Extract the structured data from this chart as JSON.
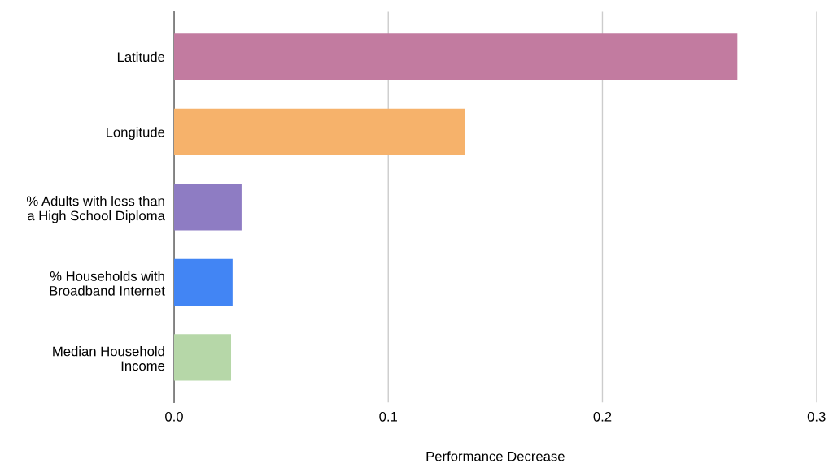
{
  "chart_data": {
    "type": "bar",
    "orientation": "horizontal",
    "xlabel": "Performance Decrease",
    "categories": [
      "Latitude",
      "Longitude",
      "% Adults with less than\na High School Diploma",
      "% Households with\nBroadband Internet",
      "Median Household\nIncome"
    ],
    "values": [
      0.263,
      0.136,
      0.0315,
      0.0273,
      0.0266
    ],
    "colors": [
      "#c27ba0",
      "#f6b26b",
      "#8e7cc3",
      "#4285f4",
      "#b6d7a8"
    ],
    "xlim": [
      0,
      0.3
    ],
    "xticks": [
      {
        "value": 0,
        "label": "0.0"
      },
      0.1,
      0.2,
      0.3
    ],
    "grid": "x"
  }
}
